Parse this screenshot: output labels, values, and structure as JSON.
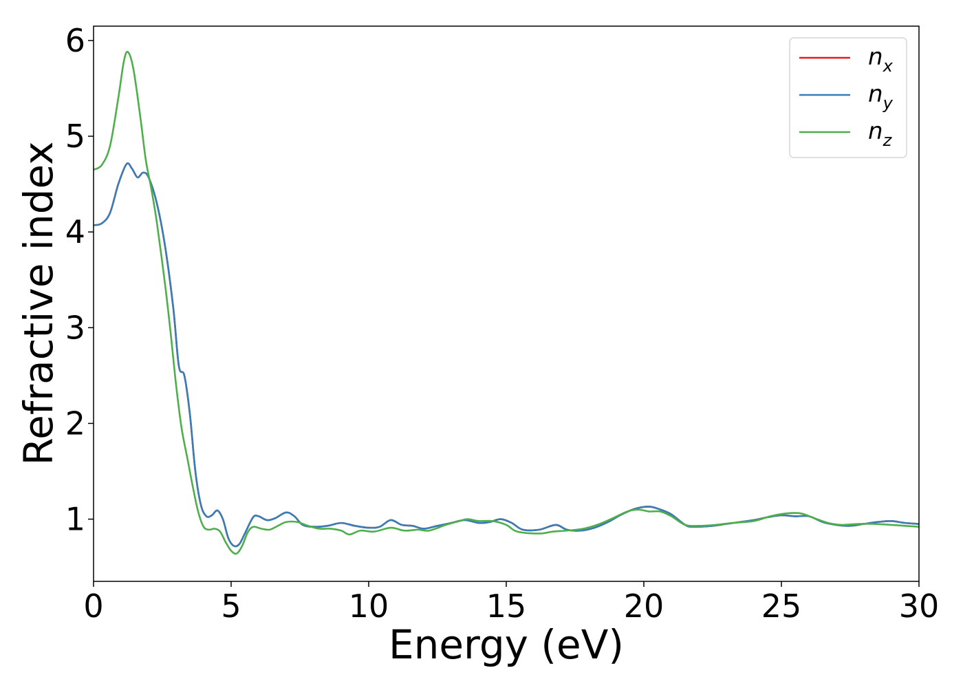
{
  "chart_data": {
    "type": "line",
    "title": "",
    "xlabel": "Energy (eV)",
    "ylabel": "Refractive index",
    "xlim": [
      0,
      30
    ],
    "ylim": [
      0.35,
      6.15
    ],
    "xticks": [
      0,
      5,
      10,
      15,
      20,
      25,
      30
    ],
    "yticks": [
      1,
      2,
      3,
      4,
      5,
      6
    ],
    "grid": false,
    "legend_position": "top-right",
    "series": [
      {
        "name": "n",
        "subscript": "x",
        "color": "#e41a1c",
        "points": [
          [
            0,
            4.07
          ],
          [
            0.3,
            4.09
          ],
          [
            0.6,
            4.2
          ],
          [
            0.9,
            4.5
          ],
          [
            1.2,
            4.71
          ],
          [
            1.4,
            4.66
          ],
          [
            1.6,
            4.57
          ],
          [
            1.8,
            4.62
          ],
          [
            2.0,
            4.57
          ],
          [
            2.3,
            4.3
          ],
          [
            2.6,
            3.85
          ],
          [
            2.9,
            3.2
          ],
          [
            3.1,
            2.6
          ],
          [
            3.3,
            2.5
          ],
          [
            3.5,
            2.1
          ],
          [
            3.7,
            1.5
          ],
          [
            3.9,
            1.15
          ],
          [
            4.1,
            1.03
          ],
          [
            4.3,
            1.04
          ],
          [
            4.5,
            1.09
          ],
          [
            4.7,
            1.0
          ],
          [
            4.9,
            0.8
          ],
          [
            5.1,
            0.72
          ],
          [
            5.3,
            0.74
          ],
          [
            5.5,
            0.85
          ],
          [
            5.8,
            1.02
          ],
          [
            6.0,
            1.03
          ],
          [
            6.3,
            0.99
          ],
          [
            6.6,
            1.01
          ],
          [
            7.0,
            1.07
          ],
          [
            7.3,
            1.03
          ],
          [
            7.6,
            0.94
          ],
          [
            8.0,
            0.92
          ],
          [
            8.5,
            0.93
          ],
          [
            9.0,
            0.96
          ],
          [
            9.5,
            0.93
          ],
          [
            10.0,
            0.91
          ],
          [
            10.4,
            0.92
          ],
          [
            10.8,
            0.99
          ],
          [
            11.2,
            0.94
          ],
          [
            11.6,
            0.93
          ],
          [
            12.0,
            0.9
          ],
          [
            12.5,
            0.93
          ],
          [
            13.0,
            0.96
          ],
          [
            13.5,
            0.99
          ],
          [
            14.0,
            0.96
          ],
          [
            14.4,
            0.97
          ],
          [
            14.8,
            1.0
          ],
          [
            15.2,
            0.96
          ],
          [
            15.6,
            0.89
          ],
          [
            16.2,
            0.89
          ],
          [
            16.8,
            0.94
          ],
          [
            17.2,
            0.89
          ],
          [
            17.7,
            0.88
          ],
          [
            18.2,
            0.91
          ],
          [
            18.7,
            0.97
          ],
          [
            19.2,
            1.05
          ],
          [
            19.7,
            1.11
          ],
          [
            20.2,
            1.13
          ],
          [
            20.6,
            1.1
          ],
          [
            21.0,
            1.05
          ],
          [
            21.5,
            0.94
          ],
          [
            21.8,
            0.92
          ],
          [
            22.5,
            0.93
          ],
          [
            23.0,
            0.95
          ],
          [
            23.5,
            0.97
          ],
          [
            24.0,
            0.99
          ],
          [
            24.5,
            1.02
          ],
          [
            25.0,
            1.04
          ],
          [
            25.5,
            1.03
          ],
          [
            26.0,
            1.03
          ],
          [
            26.5,
            0.97
          ],
          [
            27.0,
            0.94
          ],
          [
            27.5,
            0.93
          ],
          [
            28.0,
            0.95
          ],
          [
            28.5,
            0.97
          ],
          [
            29.0,
            0.98
          ],
          [
            29.5,
            0.96
          ],
          [
            30,
            0.95
          ]
        ]
      },
      {
        "name": "n",
        "subscript": "y",
        "color": "#377eb8",
        "points": [
          [
            0,
            4.07
          ],
          [
            0.3,
            4.09
          ],
          [
            0.6,
            4.2
          ],
          [
            0.9,
            4.5
          ],
          [
            1.2,
            4.71
          ],
          [
            1.4,
            4.66
          ],
          [
            1.6,
            4.57
          ],
          [
            1.8,
            4.62
          ],
          [
            2.0,
            4.57
          ],
          [
            2.3,
            4.3
          ],
          [
            2.6,
            3.85
          ],
          [
            2.9,
            3.2
          ],
          [
            3.1,
            2.6
          ],
          [
            3.3,
            2.5
          ],
          [
            3.5,
            2.1
          ],
          [
            3.7,
            1.5
          ],
          [
            3.9,
            1.15
          ],
          [
            4.1,
            1.03
          ],
          [
            4.3,
            1.04
          ],
          [
            4.5,
            1.09
          ],
          [
            4.7,
            1.0
          ],
          [
            4.9,
            0.8
          ],
          [
            5.1,
            0.72
          ],
          [
            5.3,
            0.74
          ],
          [
            5.5,
            0.85
          ],
          [
            5.8,
            1.02
          ],
          [
            6.0,
            1.03
          ],
          [
            6.3,
            0.99
          ],
          [
            6.6,
            1.01
          ],
          [
            7.0,
            1.07
          ],
          [
            7.3,
            1.03
          ],
          [
            7.6,
            0.94
          ],
          [
            8.0,
            0.92
          ],
          [
            8.5,
            0.93
          ],
          [
            9.0,
            0.96
          ],
          [
            9.5,
            0.93
          ],
          [
            10.0,
            0.91
          ],
          [
            10.4,
            0.92
          ],
          [
            10.8,
            0.99
          ],
          [
            11.2,
            0.94
          ],
          [
            11.6,
            0.93
          ],
          [
            12.0,
            0.9
          ],
          [
            12.5,
            0.93
          ],
          [
            13.0,
            0.96
          ],
          [
            13.5,
            0.99
          ],
          [
            14.0,
            0.96
          ],
          [
            14.4,
            0.97
          ],
          [
            14.8,
            1.0
          ],
          [
            15.2,
            0.96
          ],
          [
            15.6,
            0.89
          ],
          [
            16.2,
            0.89
          ],
          [
            16.8,
            0.94
          ],
          [
            17.2,
            0.89
          ],
          [
            17.7,
            0.88
          ],
          [
            18.2,
            0.91
          ],
          [
            18.7,
            0.97
          ],
          [
            19.2,
            1.05
          ],
          [
            19.7,
            1.11
          ],
          [
            20.2,
            1.13
          ],
          [
            20.6,
            1.1
          ],
          [
            21.0,
            1.05
          ],
          [
            21.5,
            0.94
          ],
          [
            21.8,
            0.92
          ],
          [
            22.5,
            0.93
          ],
          [
            23.0,
            0.95
          ],
          [
            23.5,
            0.97
          ],
          [
            24.0,
            0.99
          ],
          [
            24.5,
            1.02
          ],
          [
            25.0,
            1.04
          ],
          [
            25.5,
            1.03
          ],
          [
            26.0,
            1.03
          ],
          [
            26.5,
            0.97
          ],
          [
            27.0,
            0.94
          ],
          [
            27.5,
            0.93
          ],
          [
            28.0,
            0.95
          ],
          [
            28.5,
            0.97
          ],
          [
            29.0,
            0.98
          ],
          [
            29.5,
            0.96
          ],
          [
            30,
            0.95
          ]
        ]
      },
      {
        "name": "n",
        "subscript": "z",
        "color": "#4daf4a",
        "points": [
          [
            0,
            4.65
          ],
          [
            0.3,
            4.7
          ],
          [
            0.6,
            4.9
          ],
          [
            0.9,
            5.4
          ],
          [
            1.1,
            5.78
          ],
          [
            1.25,
            5.88
          ],
          [
            1.45,
            5.7
          ],
          [
            1.7,
            5.2
          ],
          [
            1.9,
            4.75
          ],
          [
            2.1,
            4.45
          ],
          [
            2.3,
            4.1
          ],
          [
            2.6,
            3.45
          ],
          [
            2.8,
            2.95
          ],
          [
            3.0,
            2.4
          ],
          [
            3.2,
            1.95
          ],
          [
            3.4,
            1.65
          ],
          [
            3.6,
            1.35
          ],
          [
            3.8,
            1.08
          ],
          [
            4.0,
            0.92
          ],
          [
            4.2,
            0.89
          ],
          [
            4.4,
            0.9
          ],
          [
            4.6,
            0.87
          ],
          [
            4.8,
            0.76
          ],
          [
            5.0,
            0.67
          ],
          [
            5.2,
            0.64
          ],
          [
            5.4,
            0.72
          ],
          [
            5.6,
            0.86
          ],
          [
            5.8,
            0.92
          ],
          [
            6.1,
            0.9
          ],
          [
            6.4,
            0.89
          ],
          [
            6.7,
            0.93
          ],
          [
            7.0,
            0.97
          ],
          [
            7.4,
            0.97
          ],
          [
            7.8,
            0.93
          ],
          [
            8.2,
            0.9
          ],
          [
            8.6,
            0.9
          ],
          [
            9.0,
            0.88
          ],
          [
            9.3,
            0.84
          ],
          [
            9.7,
            0.88
          ],
          [
            10.2,
            0.87
          ],
          [
            10.8,
            0.91
          ],
          [
            11.3,
            0.88
          ],
          [
            11.8,
            0.89
          ],
          [
            12.2,
            0.88
          ],
          [
            12.8,
            0.94
          ],
          [
            13.3,
            0.98
          ],
          [
            13.6,
            1.0
          ],
          [
            14.0,
            0.98
          ],
          [
            14.5,
            0.98
          ],
          [
            15.0,
            0.94
          ],
          [
            15.4,
            0.87
          ],
          [
            16.2,
            0.85
          ],
          [
            16.7,
            0.87
          ],
          [
            17.2,
            0.88
          ],
          [
            17.8,
            0.9
          ],
          [
            18.3,
            0.94
          ],
          [
            18.8,
            1.0
          ],
          [
            19.4,
            1.08
          ],
          [
            19.8,
            1.1
          ],
          [
            20.2,
            1.08
          ],
          [
            20.6,
            1.08
          ],
          [
            21.0,
            1.03
          ],
          [
            21.5,
            0.94
          ],
          [
            22.0,
            0.93
          ],
          [
            22.6,
            0.94
          ],
          [
            23.2,
            0.96
          ],
          [
            24.0,
            0.98
          ],
          [
            24.6,
            1.03
          ],
          [
            25.2,
            1.06
          ],
          [
            25.7,
            1.06
          ],
          [
            26.2,
            1.01
          ],
          [
            26.7,
            0.96
          ],
          [
            27.2,
            0.94
          ],
          [
            27.8,
            0.95
          ],
          [
            28.4,
            0.95
          ],
          [
            29.0,
            0.94
          ],
          [
            29.5,
            0.93
          ],
          [
            30,
            0.92
          ]
        ]
      }
    ]
  }
}
